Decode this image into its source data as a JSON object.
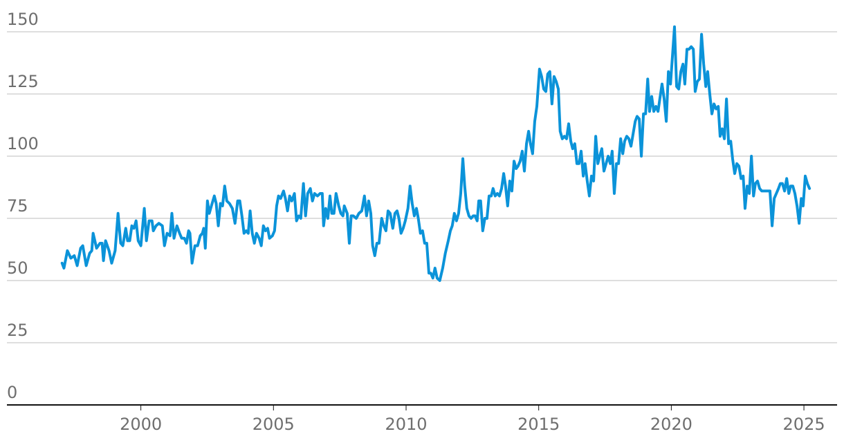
{
  "chart_data": {
    "type": "line",
    "xlim": [
      1994.95,
      2026.25
    ],
    "ylim": [
      0,
      150
    ],
    "xticks": [
      2000,
      2005,
      2010,
      2015,
      2020,
      2025
    ],
    "yticks": [
      0,
      25,
      50,
      75,
      100,
      125,
      150
    ],
    "grid": true,
    "x": [
      1997.03,
      1997.1,
      1997.23,
      1997.36,
      1997.49,
      1997.6,
      1997.73,
      1997.81,
      1997.94,
      1998.07,
      1998.15,
      1998.2,
      1998.33,
      1998.46,
      1998.54,
      1998.59,
      1998.67,
      1998.8,
      1998.9,
      1999.03,
      1999.14,
      1999.24,
      1999.32,
      1999.43,
      1999.5,
      1999.58,
      1999.66,
      1999.74,
      1999.82,
      1999.9,
      2000.0,
      2000.13,
      2000.21,
      2000.31,
      2000.42,
      2000.47,
      2000.57,
      2000.68,
      2000.81,
      2000.89,
      2000.99,
      2001.1,
      2001.17,
      2001.25,
      2001.36,
      2001.46,
      2001.54,
      2001.64,
      2001.72,
      2001.8,
      2001.85,
      2001.93,
      2002.04,
      2002.14,
      2002.24,
      2002.32,
      2002.37,
      2002.43,
      2002.51,
      2002.58,
      2002.66,
      2002.77,
      2002.84,
      2002.92,
      2003.0,
      2003.08,
      2003.16,
      2003.24,
      2003.34,
      2003.45,
      2003.55,
      2003.65,
      2003.73,
      2003.81,
      2003.89,
      2003.97,
      2004.05,
      2004.12,
      2004.2,
      2004.28,
      2004.36,
      2004.46,
      2004.54,
      2004.62,
      2004.7,
      2004.78,
      2004.85,
      2004.96,
      2005.04,
      2005.12,
      2005.19,
      2005.27,
      2005.38,
      2005.45,
      2005.53,
      2005.61,
      2005.69,
      2005.79,
      2005.87,
      2005.95,
      2006.03,
      2006.13,
      2006.21,
      2006.29,
      2006.39,
      2006.47,
      2006.55,
      2006.66,
      2006.76,
      2006.84,
      2006.89,
      2006.97,
      2007.05,
      2007.13,
      2007.2,
      2007.28,
      2007.36,
      2007.46,
      2007.54,
      2007.62,
      2007.67,
      2007.78,
      2007.86,
      2007.93,
      2008.01,
      2008.12,
      2008.22,
      2008.33,
      2008.43,
      2008.51,
      2008.59,
      2008.67,
      2008.74,
      2008.82,
      2008.9,
      2008.98,
      2009.08,
      2009.16,
      2009.24,
      2009.32,
      2009.4,
      2009.5,
      2009.58,
      2009.66,
      2009.73,
      2009.81,
      2009.89,
      2009.97,
      2010.07,
      2010.15,
      2010.23,
      2010.31,
      2010.39,
      2010.46,
      2010.54,
      2010.62,
      2010.7,
      2010.78,
      2010.86,
      2010.93,
      2011.01,
      2011.09,
      2011.17,
      2011.27,
      2011.38,
      2011.48,
      2011.59,
      2011.67,
      2011.74,
      2011.82,
      2011.9,
      2011.98,
      2012.06,
      2012.14,
      2012.21,
      2012.29,
      2012.37,
      2012.45,
      2012.53,
      2012.6,
      2012.68,
      2012.74,
      2012.81,
      2012.89,
      2012.97,
      2013.05,
      2013.13,
      2013.21,
      2013.28,
      2013.36,
      2013.44,
      2013.52,
      2013.6,
      2013.68,
      2013.75,
      2013.83,
      2013.91,
      2013.99,
      2014.07,
      2014.15,
      2014.22,
      2014.3,
      2014.38,
      2014.46,
      2014.54,
      2014.62,
      2014.69,
      2014.77,
      2014.85,
      2014.93,
      2015.03,
      2015.11,
      2015.19,
      2015.27,
      2015.34,
      2015.42,
      2015.5,
      2015.58,
      2015.66,
      2015.74,
      2015.81,
      2015.89,
      2015.97,
      2016.05,
      2016.13,
      2016.21,
      2016.28,
      2016.36,
      2016.44,
      2016.52,
      2016.6,
      2016.68,
      2016.75,
      2016.83,
      2016.91,
      2016.99,
      2017.07,
      2017.15,
      2017.23,
      2017.3,
      2017.38,
      2017.46,
      2017.54,
      2017.62,
      2017.7,
      2017.77,
      2017.85,
      2017.93,
      2018.01,
      2018.09,
      2018.17,
      2018.24,
      2018.32,
      2018.4,
      2018.48,
      2018.56,
      2018.64,
      2018.71,
      2018.79,
      2018.87,
      2018.95,
      2019.03,
      2019.11,
      2019.18,
      2019.26,
      2019.34,
      2019.42,
      2019.5,
      2019.58,
      2019.65,
      2019.73,
      2019.81,
      2019.89,
      2019.97,
      2020.12,
      2020.2,
      2020.28,
      2020.36,
      2020.44,
      2020.51,
      2020.59,
      2020.67,
      2020.75,
      2020.83,
      2020.9,
      2020.98,
      2021.06,
      2021.14,
      2021.22,
      2021.3,
      2021.37,
      2021.45,
      2021.53,
      2021.61,
      2021.69,
      2021.77,
      2021.84,
      2021.92,
      2022.0,
      2022.08,
      2022.16,
      2022.24,
      2022.31,
      2022.39,
      2022.47,
      2022.55,
      2022.63,
      2022.71,
      2022.78,
      2022.86,
      2022.94,
      2023.02,
      2023.1,
      2023.17,
      2023.25,
      2023.33,
      2023.41,
      2023.49,
      2023.57,
      2023.64,
      2023.72,
      2023.8,
      2023.88,
      2023.96,
      2024.04,
      2024.11,
      2024.19,
      2024.27,
      2024.35,
      2024.43,
      2024.5,
      2024.58,
      2024.66,
      2024.74,
      2024.82,
      2024.9,
      2024.97,
      2025.05,
      2025.13,
      2025.21
    ],
    "series": [
      {
        "color": "#0b93d9",
        "values": [
          57,
          55,
          62,
          59,
          60,
          56,
          63,
          64,
          56,
          61,
          62,
          69,
          63,
          65,
          65,
          58,
          66,
          62,
          57,
          62,
          77,
          65,
          64,
          71,
          66,
          66,
          72,
          71,
          74,
          66,
          64,
          79,
          66,
          74,
          74,
          70,
          72,
          73,
          72,
          64,
          69,
          68,
          77,
          67,
          72,
          69,
          67,
          67,
          65,
          70,
          69,
          57,
          64,
          64,
          68,
          69,
          71,
          63,
          82,
          77,
          80,
          84,
          81,
          72,
          81,
          80,
          88,
          82,
          81,
          79,
          73,
          82,
          82,
          76,
          69,
          70,
          69,
          78,
          69,
          65,
          69,
          67,
          64,
          72,
          70,
          71,
          67,
          68,
          70,
          80,
          84,
          83,
          86,
          83,
          78,
          84,
          82,
          85,
          74,
          76,
          75,
          89,
          76,
          85,
          87,
          82,
          85,
          84,
          85,
          85,
          72,
          79,
          75,
          84,
          77,
          77,
          85,
          80,
          77,
          76,
          80,
          77,
          65,
          76,
          76,
          75,
          77,
          78,
          84,
          76,
          82,
          77,
          64,
          60,
          65,
          65,
          75,
          72,
          70,
          78,
          77,
          71,
          77,
          78,
          75,
          69,
          71,
          74,
          79,
          88,
          81,
          76,
          79,
          75,
          69,
          70,
          65,
          65,
          53,
          53,
          51,
          55,
          51,
          50,
          55,
          61,
          66,
          70,
          72,
          77,
          74,
          77,
          85,
          99,
          88,
          79,
          76,
          75,
          76,
          76,
          74,
          82,
          82,
          70,
          75,
          75,
          84,
          84,
          87,
          84,
          85,
          84,
          87,
          93,
          88,
          80,
          90,
          86,
          98,
          95,
          96,
          98,
          102,
          94,
          105,
          110,
          105,
          101,
          114,
          120,
          135,
          132,
          127,
          126,
          133,
          134,
          121,
          132,
          130,
          127,
          110,
          107,
          108,
          107,
          113,
          106,
          103,
          105,
          97,
          97,
          102,
          92,
          97,
          90,
          84,
          92,
          90,
          108,
          97,
          100,
          103,
          94,
          97,
          100,
          97,
          102,
          85,
          97,
          97,
          107,
          101,
          106,
          108,
          107,
          104,
          109,
          114,
          116,
          115,
          100,
          117,
          117,
          131,
          118,
          124,
          118,
          120,
          118,
          124,
          129,
          123,
          114,
          134,
          129,
          152,
          128,
          127,
          134,
          137,
          129,
          143,
          143,
          144,
          143,
          126,
          130,
          131,
          149,
          137,
          128,
          134,
          125,
          117,
          121,
          119,
          120,
          108,
          111,
          107,
          123,
          105,
          106,
          99,
          93,
          97,
          96,
          91,
          92,
          79,
          88,
          85,
          100,
          84,
          89,
          90,
          87,
          86,
          86,
          86,
          86,
          86,
          72,
          83,
          85,
          87,
          89,
          89,
          86,
          91,
          85,
          88,
          88,
          85,
          80,
          73,
          83,
          80,
          92,
          89,
          87
        ]
      }
    ]
  }
}
